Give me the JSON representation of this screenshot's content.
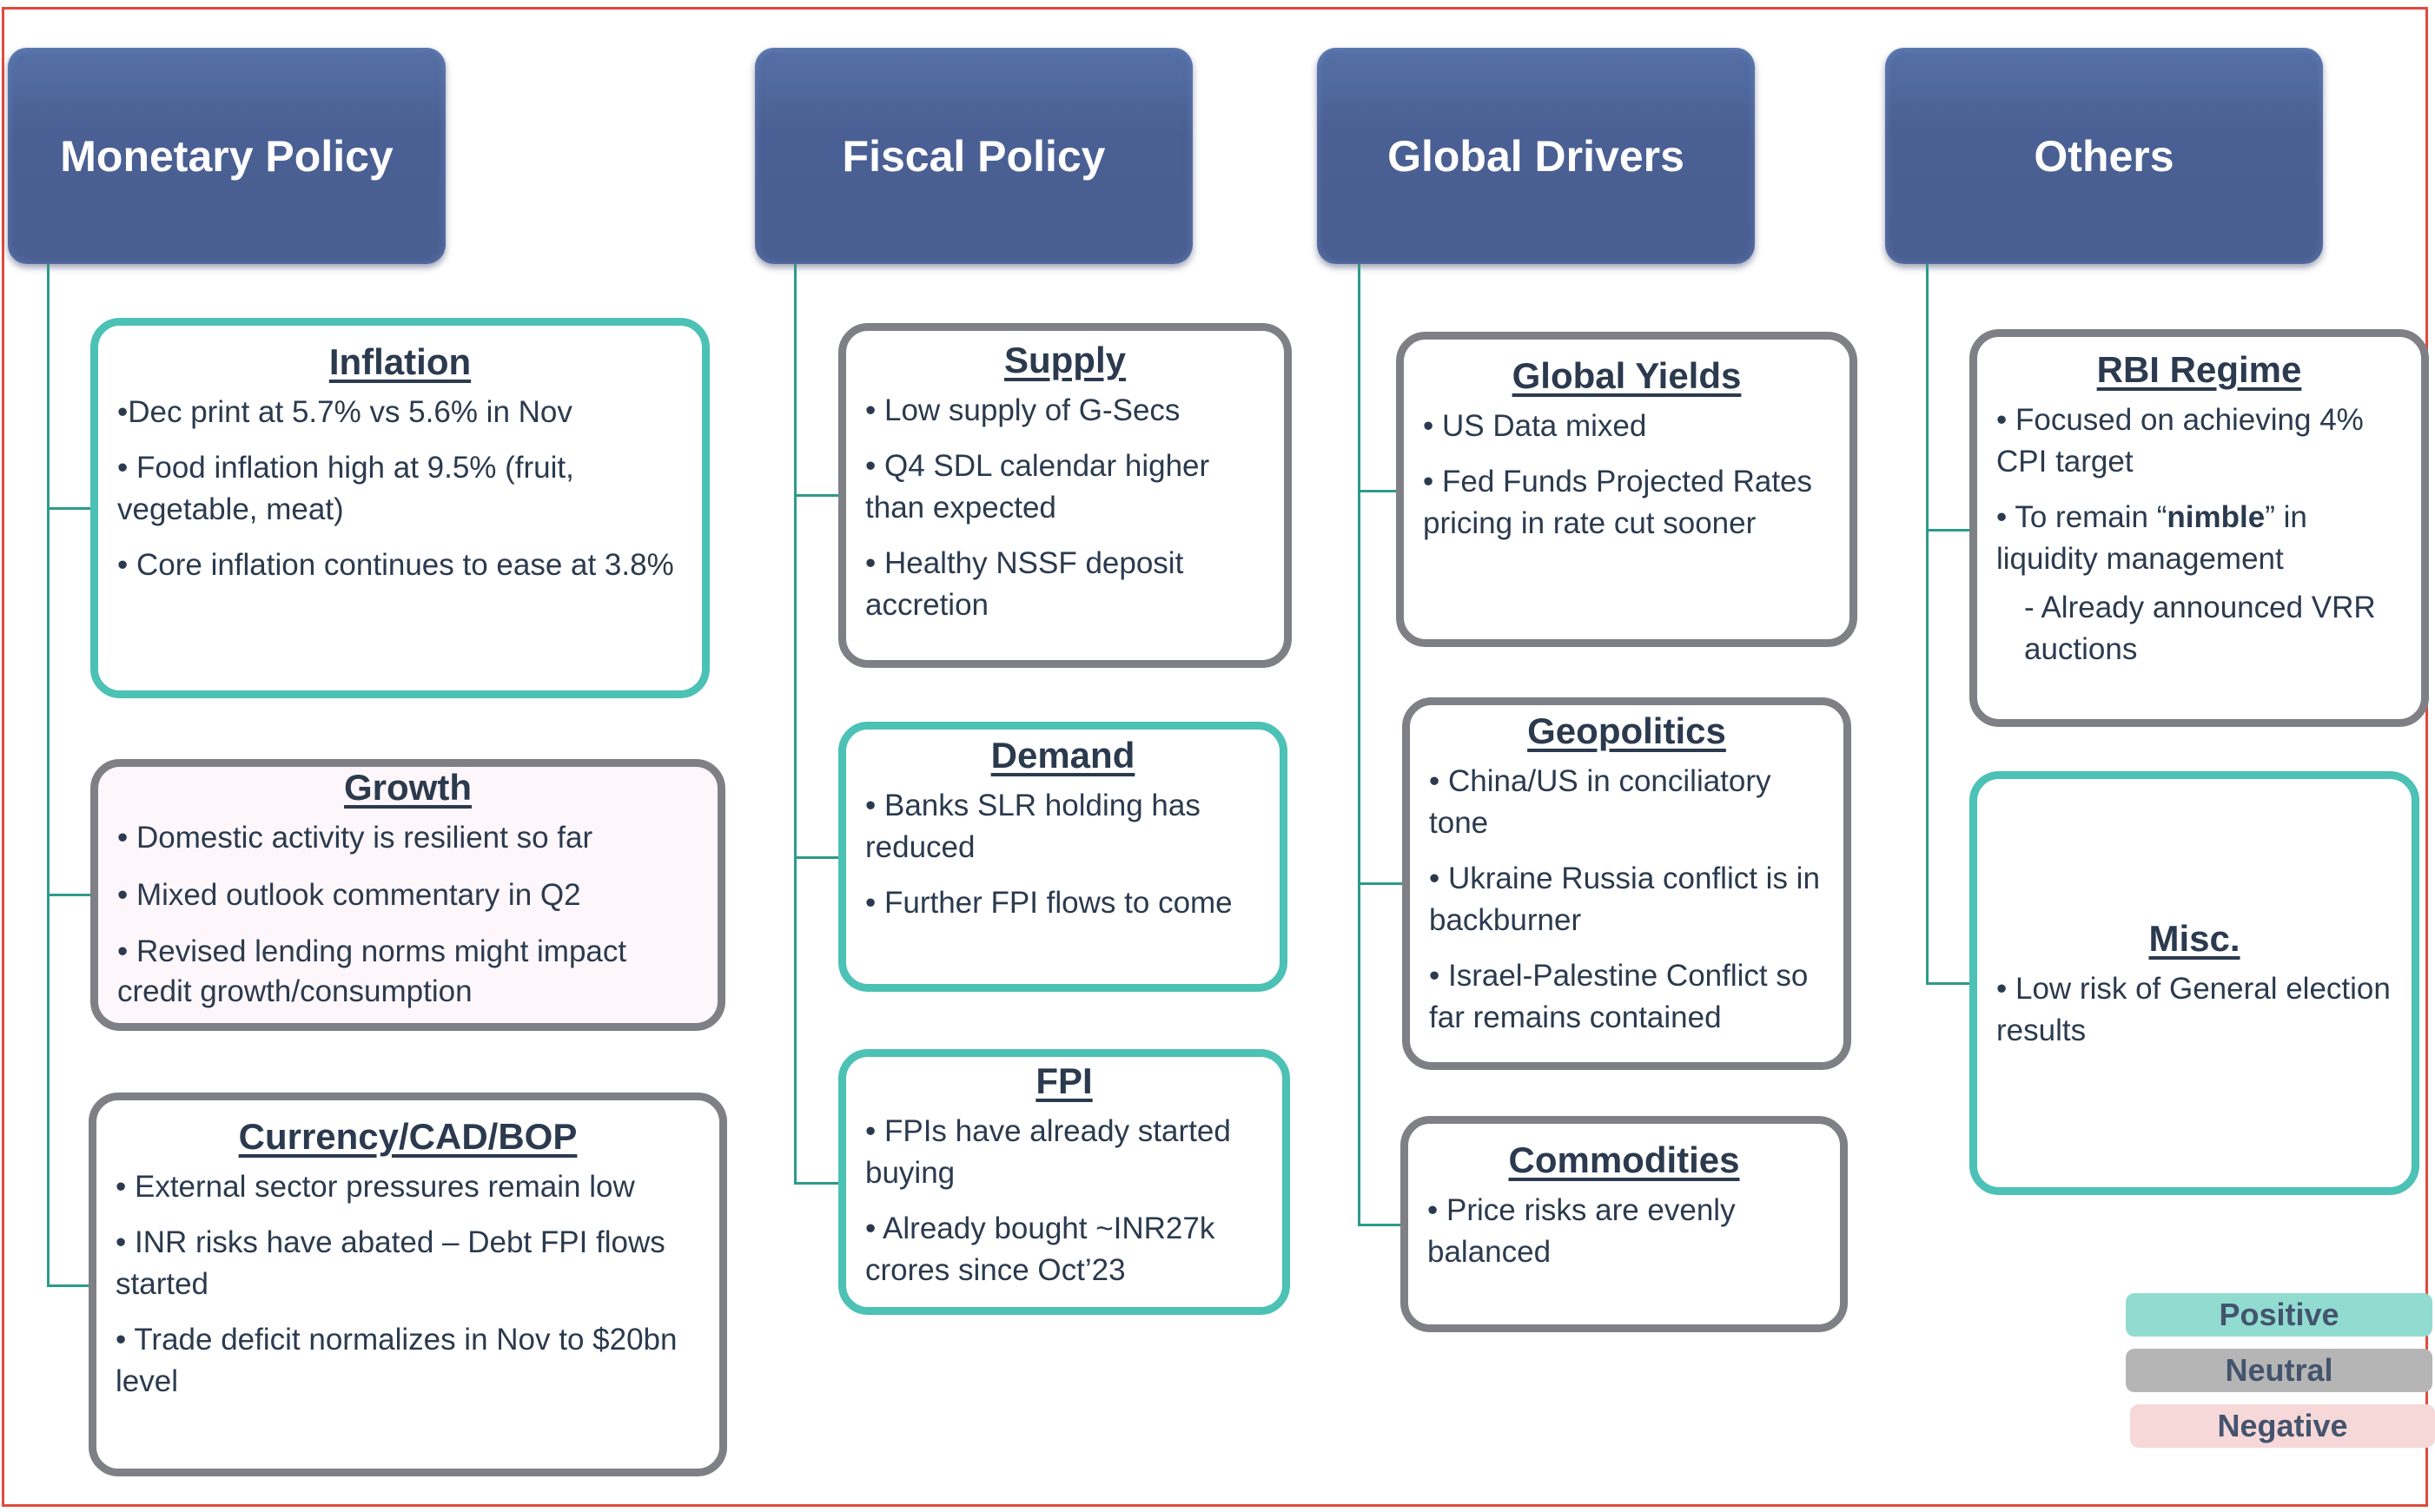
{
  "colors": {
    "header": "#4a5f93",
    "positive": "#4cc1b5",
    "neutral": "#7f7f86",
    "negative_bg": "#f6d8d8",
    "connector": "#2e9a8a",
    "frame": "#e04b3c"
  },
  "columns": [
    {
      "title": "Monetary Policy",
      "boxes": [
        {
          "title": "Inflation",
          "sentiment": "positive",
          "bullets": [
            "•Dec print at 5.7% vs 5.6% in Nov",
            "• Food inflation high at 9.5% (fruit, vegetable, meat)",
            "• Core inflation continues to ease at 3.8%"
          ]
        },
        {
          "title": "Growth",
          "sentiment": "neutral",
          "bullets": [
            "• Domestic activity is resilient so far",
            "• Mixed outlook commentary in Q2",
            "• Revised lending norms might impact credit growth/consumption"
          ]
        },
        {
          "title": "Currency/CAD/BOP",
          "sentiment": "neutral",
          "bullets": [
            "• External sector pressures remain low",
            "• INR risks have abated – Debt FPI flows started",
            "• Trade deficit normalizes in Nov to $20bn level"
          ]
        }
      ]
    },
    {
      "title": "Fiscal Policy",
      "boxes": [
        {
          "title": "Supply",
          "sentiment": "neutral",
          "bullets": [
            "• Low supply of G-Secs",
            "• Q4 SDL calendar higher than expected",
            "• Healthy NSSF deposit accretion"
          ]
        },
        {
          "title": "Demand",
          "sentiment": "positive",
          "bullets": [
            "• Banks SLR holding has reduced",
            "• Further FPI flows to come"
          ]
        },
        {
          "title": "FPI",
          "sentiment": "positive",
          "bullets": [
            "• FPIs have already started buying",
            "• Already bought ~INR27k crores since Oct’23"
          ]
        }
      ]
    },
    {
      "title": "Global Drivers",
      "boxes": [
        {
          "title": "Global Yields",
          "sentiment": "neutral",
          "bullets": [
            "• US Data mixed",
            "• Fed Funds Projected Rates pricing in rate cut sooner"
          ]
        },
        {
          "title": "Geopolitics",
          "sentiment": "neutral",
          "bullets": [
            "• China/US in conciliatory tone",
            "• Ukraine Russia conflict is in backburner",
            "• Israel-Palestine Conflict so far remains contained"
          ]
        },
        {
          "title": "Commodities",
          "sentiment": "neutral",
          "bullets": [
            "• Price risks are evenly balanced"
          ]
        }
      ]
    },
    {
      "title": "Others",
      "boxes": [
        {
          "title": "RBI Regime",
          "sentiment": "neutral",
          "bullets": [
            "• Focused on achieving 4% CPI target"
          ],
          "bullet2": {
            "prefix": "• To remain “",
            "bold": "nimble",
            "suffix": "” in liquidity management"
          },
          "sub": "- Already announced VRR auctions"
        },
        {
          "title": "Misc.",
          "sentiment": "positive",
          "bullets": [
            "• Low risk of General election results"
          ]
        }
      ]
    }
  ],
  "legend": [
    "Positive",
    "Neutral",
    "Negative"
  ]
}
